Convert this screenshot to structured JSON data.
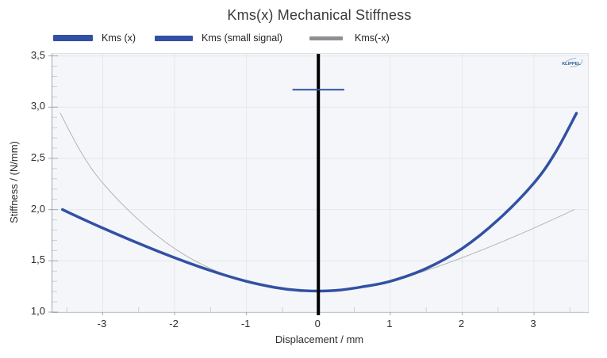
{
  "title": "Kms(x) Mechanical Stiffness",
  "legend": {
    "items": [
      {
        "label": "Kms (x)",
        "color": "#3250a4",
        "thickness": 8
      },
      {
        "label": "Kms (small signal)",
        "color": "#3250a4",
        "thickness": 7
      },
      {
        "label": "Kms(-x)",
        "color": "#8d8f92",
        "thickness": 5
      }
    ]
  },
  "logo": {
    "text": "KLIPPEL",
    "color": "#2a6496"
  },
  "axes": {
    "y_title": "Stiffness / (N/mm)",
    "x_title": "Displacement / mm"
  },
  "chart_data": {
    "type": "line",
    "title": "Kms(x) Mechanical Stiffness",
    "xlabel": "Displacement / mm",
    "ylabel": "Stiffness / (N/mm)",
    "xlim": [
      -3.7,
      3.75
    ],
    "ylim": [
      1.0,
      3.52
    ],
    "grid": true,
    "legend_position": "top",
    "background": "#f5f6f9",
    "grid_color": "#e4e7ec",
    "minor_tick_color": "#c9ced4",
    "major_tick_color": "#a2a7ad",
    "x_ticks": [
      {
        "value": -3,
        "label": "-3"
      },
      {
        "value": -2,
        "label": "-2"
      },
      {
        "value": -1,
        "label": "-1"
      },
      {
        "value": 0,
        "label": "0"
      },
      {
        "value": 1,
        "label": "1"
      },
      {
        "value": 2,
        "label": "2"
      },
      {
        "value": 3,
        "label": "3"
      }
    ],
    "y_ticks": [
      {
        "value": 1.0,
        "label": "1,0"
      },
      {
        "value": 1.5,
        "label": "1,5"
      },
      {
        "value": 2.0,
        "label": "2,0"
      },
      {
        "value": 2.5,
        "label": "2,5"
      },
      {
        "value": 3.0,
        "label": "3,0"
      },
      {
        "value": 3.5,
        "label": "3,5"
      }
    ],
    "x_minor_step": 0.5,
    "y_minor_step": 0.1,
    "zero_line": {
      "x": 0,
      "color": "#000000",
      "width": 4
    },
    "series": [
      {
        "name": "Kms(-x)",
        "color": "#b5b5b5",
        "width": 1,
        "points": [
          [
            -3.59,
            2.94
          ],
          [
            -3.3,
            2.56
          ],
          [
            -3.0,
            2.26
          ],
          [
            -2.5,
            1.9
          ],
          [
            -2.0,
            1.62
          ],
          [
            -1.5,
            1.425
          ],
          [
            -1.0,
            1.3
          ],
          [
            -0.6,
            1.245
          ],
          [
            -0.3,
            1.215
          ],
          [
            0,
            1.205
          ],
          [
            0.3,
            1.213
          ],
          [
            0.6,
            1.24
          ],
          [
            1.0,
            1.3
          ],
          [
            1.5,
            1.405
          ],
          [
            2.0,
            1.53
          ],
          [
            2.5,
            1.67
          ],
          [
            3.0,
            1.82
          ],
          [
            3.3,
            1.915
          ],
          [
            3.56,
            2.0
          ]
        ]
      },
      {
        "name": "Kms (x)",
        "color": "#3250a4",
        "width": 3.5,
        "points": [
          [
            -3.56,
            2.0
          ],
          [
            -3.3,
            1.915
          ],
          [
            -3.0,
            1.82
          ],
          [
            -2.5,
            1.67
          ],
          [
            -2.0,
            1.53
          ],
          [
            -1.5,
            1.405
          ],
          [
            -1.0,
            1.3
          ],
          [
            -0.6,
            1.24
          ],
          [
            -0.3,
            1.213
          ],
          [
            0,
            1.205
          ],
          [
            0.3,
            1.215
          ],
          [
            0.6,
            1.245
          ],
          [
            1.0,
            1.3
          ],
          [
            1.5,
            1.425
          ],
          [
            2.0,
            1.62
          ],
          [
            2.5,
            1.9
          ],
          [
            3.0,
            2.26
          ],
          [
            3.3,
            2.56
          ],
          [
            3.59,
            2.94
          ]
        ]
      },
      {
        "name": "Kms (small signal)",
        "color": "#3250a4",
        "width": 2,
        "points": [
          [
            -0.36,
            3.17
          ],
          [
            0.36,
            3.17
          ]
        ]
      }
    ]
  }
}
